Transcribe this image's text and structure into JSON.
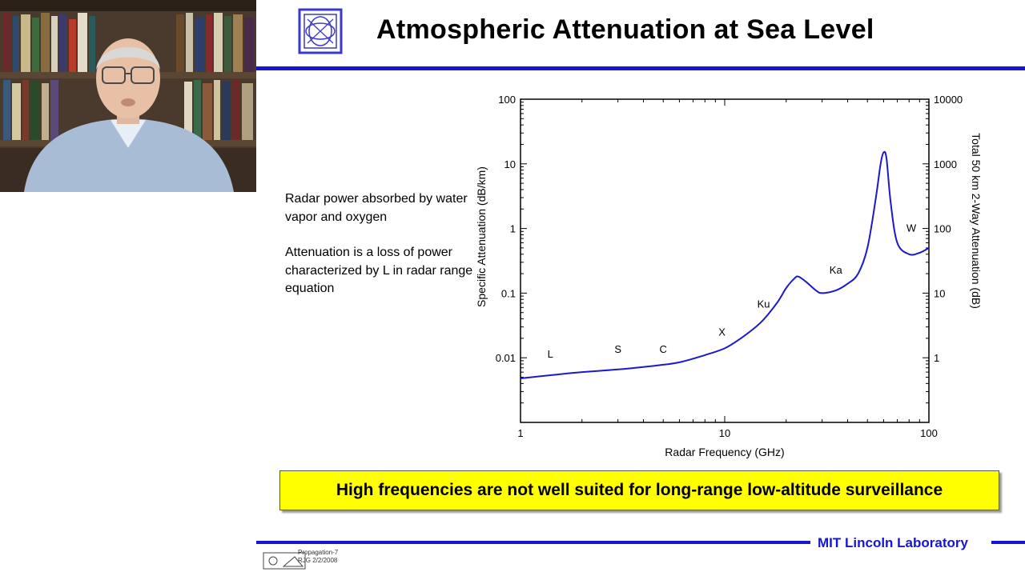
{
  "slide": {
    "title": "Atmospheric Attenuation at Sea Level",
    "bullets": [
      "Radar power absorbed by water vapor and oxygen",
      "Attenuation is a loss of power characterized by L in radar range equation"
    ],
    "callout": "High frequencies are not well suited for long-range low-altitude surveillance",
    "footer": {
      "org": "MIT Lincoln Laboratory",
      "ref_line1": "Propagation-7",
      "ref_line2": "RJG 2/2/2008"
    }
  },
  "colors": {
    "accent_blue": "#1515d6",
    "callout_yellow": "#ffff00",
    "curve": "#1a1acc"
  },
  "chart_data": {
    "type": "line",
    "xlabel": "Radar Frequency (GHz)",
    "ylabel": "Specific Attenuation (dB/km)",
    "y2label": "Total 50 km 2-Way Attenuation (dB)",
    "x_scale": "log",
    "y_scale": "log",
    "xlim": [
      1,
      100
    ],
    "ylim": [
      0.001,
      100
    ],
    "y2lim": [
      0.1,
      10000
    ],
    "x_ticks": [
      1,
      10,
      100
    ],
    "x_tick_labels": [
      "1",
      "10",
      "100"
    ],
    "y_ticks": [
      0.01,
      0.1,
      1,
      10,
      100
    ],
    "y_tick_labels": [
      "0.01",
      "0.1",
      "1",
      "10",
      "100"
    ],
    "y2_ticks": [
      1,
      10,
      100,
      1000,
      10000
    ],
    "y2_tick_labels": [
      "1",
      "10",
      "100",
      "1000",
      "10000"
    ],
    "grid": false,
    "series": [
      {
        "x": [
          1,
          1.5,
          2,
          3,
          4,
          5,
          6,
          8,
          10,
          12,
          15,
          18,
          20,
          22,
          23,
          25,
          28,
          30,
          35,
          40,
          45,
          50,
          55,
          58,
          60,
          62,
          65,
          70,
          80,
          90,
          100
        ],
        "y": [
          0.0048,
          0.0055,
          0.006,
          0.0066,
          0.0072,
          0.0078,
          0.0085,
          0.011,
          0.014,
          0.02,
          0.035,
          0.07,
          0.12,
          0.17,
          0.18,
          0.15,
          0.11,
          0.1,
          0.11,
          0.14,
          0.2,
          0.5,
          3,
          10,
          15,
          12,
          2.5,
          0.6,
          0.4,
          0.42,
          0.5
        ]
      }
    ],
    "annotations": [
      {
        "text": "L",
        "x": 1.4,
        "y": 0.01
      },
      {
        "text": "S",
        "x": 3.0,
        "y": 0.012
      },
      {
        "text": "C",
        "x": 5.0,
        "y": 0.012
      },
      {
        "text": "X",
        "x": 9.7,
        "y": 0.022
      },
      {
        "text": "Ku",
        "x": 15.5,
        "y": 0.06
      },
      {
        "text": "Ka",
        "x": 35,
        "y": 0.2
      },
      {
        "text": "W",
        "x": 82,
        "y": 0.9
      }
    ]
  }
}
